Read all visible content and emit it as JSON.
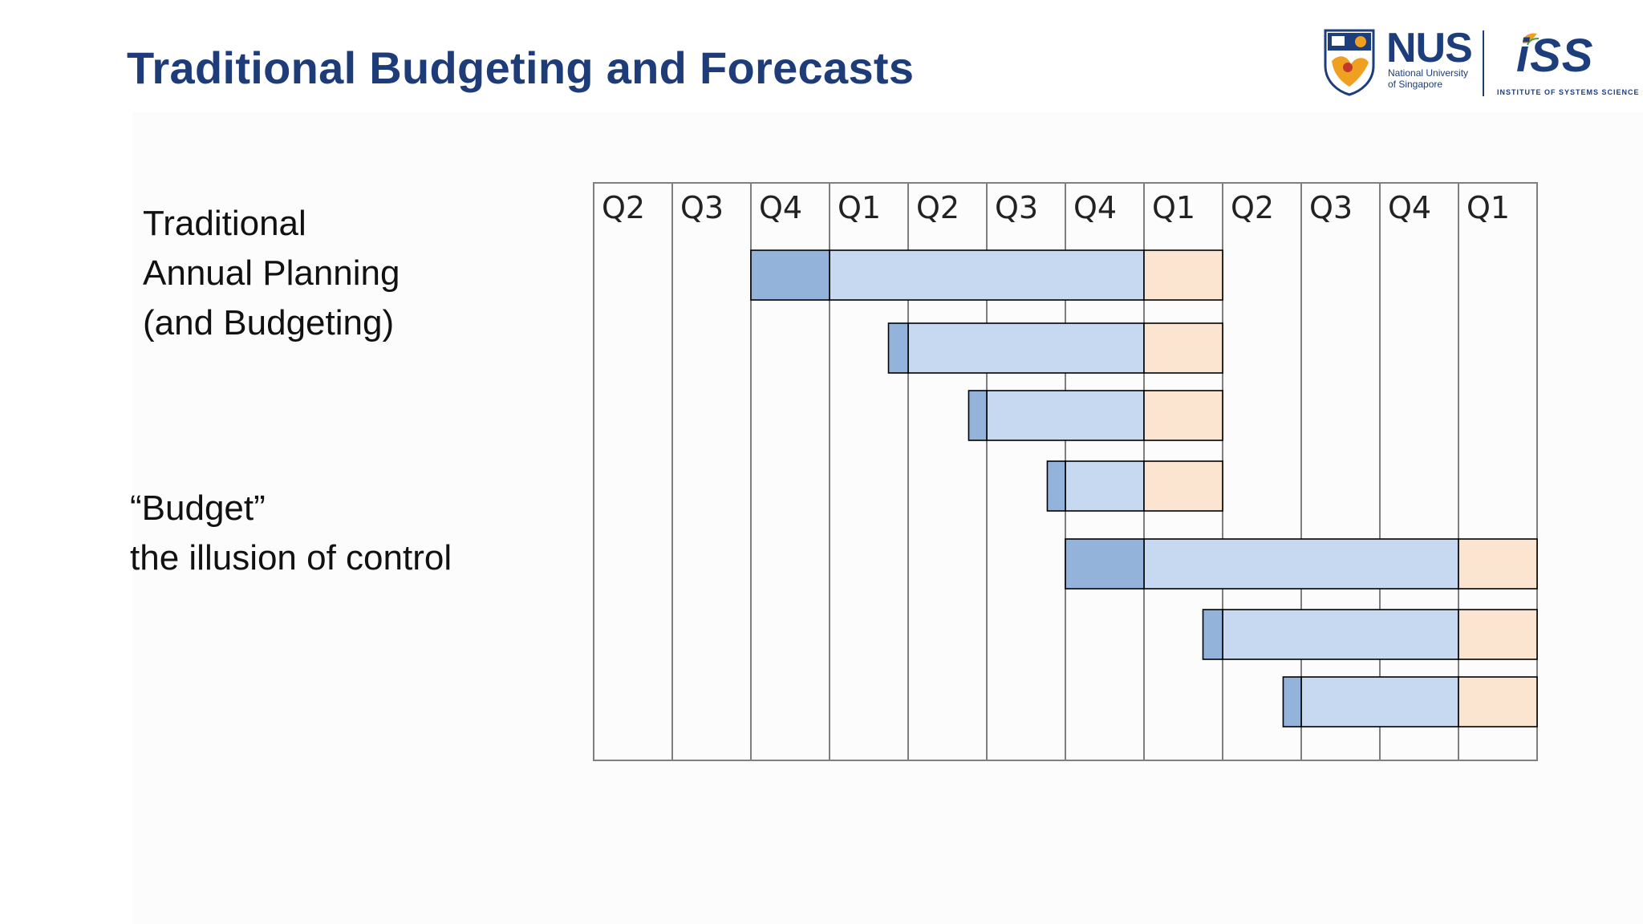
{
  "slide": {
    "title": "Traditional Budgeting and Forecasts",
    "label1": [
      "Traditional",
      "Annual Planning",
      "(and Budgeting)"
    ],
    "label2": [
      "“Budget”",
      "the illusion of control"
    ]
  },
  "logo": {
    "nus": "NUS",
    "nus_sub1": "National University",
    "nus_sub2": "of Singapore",
    "iss": "iSS",
    "iss_sub": "INSTITUTE OF SYSTEMS SCIENCE"
  },
  "chart_data": {
    "type": "gantt",
    "categories": [
      "Q2",
      "Q3",
      "Q4",
      "Q1",
      "Q2",
      "Q3",
      "Q4",
      "Q1",
      "Q2",
      "Q3",
      "Q4",
      "Q1"
    ],
    "rows": [
      {
        "dark": [
          2,
          3
        ],
        "light": [
          3,
          7
        ],
        "peach": [
          7,
          8
        ]
      },
      {
        "dark": [
          3.75,
          4
        ],
        "light": [
          4,
          7
        ],
        "peach": [
          7,
          8
        ]
      },
      {
        "dark": [
          4.77,
          5
        ],
        "light": [
          5,
          7
        ],
        "peach": [
          7,
          8
        ]
      },
      {
        "dark": [
          5.77,
          6
        ],
        "light": [
          6,
          7
        ],
        "peach": [
          7,
          8
        ]
      },
      {
        "dark": [
          6,
          7
        ],
        "light": [
          7,
          11
        ],
        "peach": [
          11,
          12
        ]
      },
      {
        "dark": [
          7.75,
          8
        ],
        "light": [
          8,
          11
        ],
        "peach": [
          11,
          12
        ]
      },
      {
        "dark": [
          8.77,
          9
        ],
        "light": [
          9,
          11
        ],
        "peach": [
          11,
          12
        ]
      }
    ],
    "colors": {
      "dark": "#94b3da",
      "light": "#c6d9f1",
      "peach": "#fbe5d0",
      "grid": "#7f7f7f"
    }
  }
}
